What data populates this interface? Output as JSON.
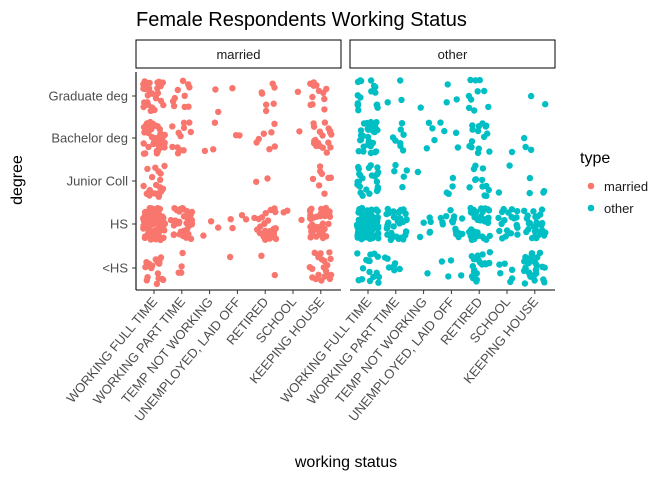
{
  "chart_data": {
    "type": "scatter",
    "subtype": "jitter-faceted",
    "title": "Female Respondents Working Status",
    "xlabel": "working status",
    "ylabel": "degree",
    "facet_by": "type",
    "facets": [
      "married",
      "other"
    ],
    "x_categories": [
      "WORKING FULL TIME",
      "WORKING PART TIME",
      "TEMP NOT WORKING",
      "UNEMPLOYED, LAID OFF",
      "RETIRED",
      "SCHOOL",
      "KEEPING HOUSE"
    ],
    "y_categories": [
      "<HS",
      "HS",
      "Junior Coll",
      "Bachelor deg",
      "Graduate deg"
    ],
    "legend": {
      "title": "type",
      "position": "right",
      "entries": [
        {
          "label": "married",
          "color": "#F8766D"
        },
        {
          "label": "other",
          "color": "#00BFC4"
        }
      ]
    },
    "approx_point_counts": {
      "married": {
        "WORKING FULL TIME": {
          "<HS": 18,
          "HS": 90,
          "Junior Coll": 22,
          "Bachelor deg": 45,
          "Graduate deg": 30
        },
        "WORKING PART TIME": {
          "<HS": 4,
          "HS": 40,
          "Junior Coll": 0,
          "Bachelor deg": 12,
          "Graduate deg": 10
        },
        "TEMP NOT WORKING": {
          "<HS": 0,
          "HS": 3,
          "Junior Coll": 0,
          "Bachelor deg": 3,
          "Graduate deg": 2
        },
        "UNEMPLOYED, LAID OFF": {
          "<HS": 1,
          "HS": 4,
          "Junior Coll": 0,
          "Bachelor deg": 2,
          "Graduate deg": 1
        },
        "RETIRED": {
          "<HS": 2,
          "HS": 28,
          "Junior Coll": 2,
          "Bachelor deg": 7,
          "Graduate deg": 7
        },
        "SCHOOL": {
          "<HS": 0,
          "HS": 3,
          "Junior Coll": 0,
          "Bachelor deg": 1,
          "Graduate deg": 1
        },
        "KEEPING HOUSE": {
          "<HS": 20,
          "HS": 45,
          "Junior Coll": 8,
          "Bachelor deg": 20,
          "Graduate deg": 12
        }
      },
      "other": {
        "WORKING FULL TIME": {
          "<HS": 16,
          "HS": 100,
          "Junior Coll": 25,
          "Bachelor deg": 30,
          "Graduate deg": 18
        },
        "WORKING PART TIME": {
          "<HS": 8,
          "HS": 40,
          "Junior Coll": 5,
          "Bachelor deg": 8,
          "Graduate deg": 3
        },
        "TEMP NOT WORKING": {
          "<HS": 1,
          "HS": 6,
          "Junior Coll": 1,
          "Bachelor deg": 4,
          "Graduate deg": 1
        },
        "UNEMPLOYED, LAID OFF": {
          "<HS": 4,
          "HS": 16,
          "Junior Coll": 4,
          "Bachelor deg": 4,
          "Graduate deg": 3
        },
        "RETIRED": {
          "<HS": 20,
          "HS": 40,
          "Junior Coll": 12,
          "Bachelor deg": 15,
          "Graduate deg": 10
        },
        "SCHOOL": {
          "<HS": 6,
          "HS": 20,
          "Junior Coll": 2,
          "Bachelor deg": 1,
          "Graduate deg": 0
        },
        "KEEPING HOUSE": {
          "<HS": 30,
          "HS": 30,
          "Junior Coll": 4,
          "Bachelor deg": 3,
          "Graduate deg": 2
        }
      }
    },
    "grid": false,
    "point_color_by": "type"
  }
}
